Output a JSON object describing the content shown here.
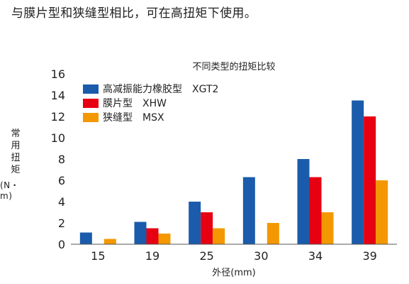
{
  "header": {
    "text": "与膜片型和狭缝型相比，可在高扭矩下使用。"
  },
  "chart_data": {
    "type": "bar",
    "title": "不同类型的扭矩比较",
    "xlabel": "外径(mm)",
    "ylabel": "常用扭矩",
    "ylabel_unit": "(N・m)",
    "ylim": [
      0,
      16
    ],
    "ytick_step": 2,
    "categories": [
      "15",
      "19",
      "25",
      "30",
      "34",
      "39"
    ],
    "legend_position": "top-left",
    "grid": false,
    "series": [
      {
        "name": "高减振能力橡胶型　XGT2",
        "color": "#1a5bab",
        "values": [
          1.1,
          2.1,
          4.0,
          6.3,
          8.0,
          13.5
        ]
      },
      {
        "name": "膜片型　XHW",
        "color": "#e60012",
        "values": [
          null,
          1.5,
          3.0,
          null,
          6.3,
          12.0
        ]
      },
      {
        "name": "狭缝型　MSX",
        "color": "#f39800",
        "values": [
          0.5,
          1.0,
          1.5,
          2.0,
          3.0,
          6.0
        ]
      }
    ]
  }
}
